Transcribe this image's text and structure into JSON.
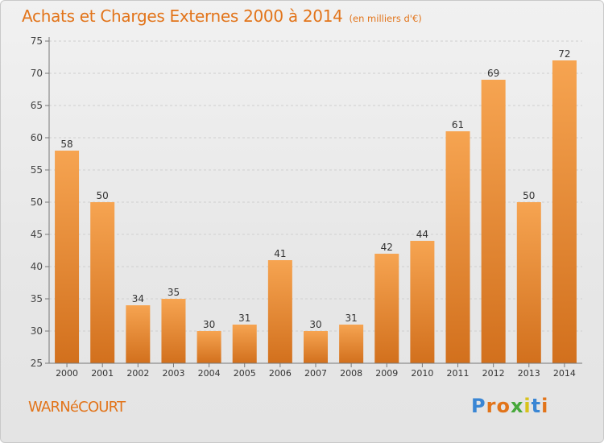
{
  "header": {
    "title": "Achats et Charges Externes 2000 à 2014",
    "unit": "(en milliers d'€)"
  },
  "footer": {
    "commune": "WARNéCOURT",
    "brand": "Proxiti",
    "brand_colors": [
      "#3a86d4",
      "#e2741a",
      "#e2741a",
      "#47a83b",
      "#d8c21c",
      "#3a86d4",
      "#e2741a"
    ]
  },
  "chart_data": {
    "type": "bar",
    "title": "Achats et Charges Externes 2000 à 2014",
    "subtitle": "(en milliers d'€)",
    "xlabel": "",
    "ylabel": "",
    "categories": [
      "2000",
      "2001",
      "2002",
      "2003",
      "2004",
      "2005",
      "2006",
      "2007",
      "2008",
      "2009",
      "2010",
      "2011",
      "2012",
      "2013",
      "2014"
    ],
    "values": [
      58,
      50,
      34,
      35,
      30,
      31,
      41,
      30,
      31,
      42,
      44,
      61,
      69,
      50,
      72
    ],
    "ylim": [
      25,
      75
    ],
    "yticks": [
      25,
      30,
      35,
      40,
      45,
      50,
      55,
      60,
      65,
      70,
      75
    ],
    "grid": true,
    "bar_color": "#f0943c",
    "bar_color_dark": "#d9741c"
  }
}
